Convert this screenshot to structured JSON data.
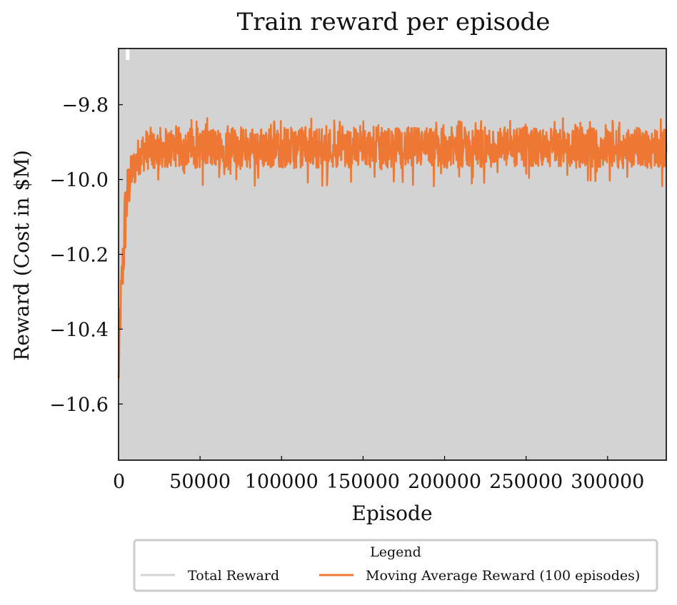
{
  "chart_data": {
    "type": "line",
    "title": "Train reward per episode",
    "xlabel": "Episode",
    "ylabel": "Reward (Cost in $M)",
    "xlim": [
      0,
      336000
    ],
    "ylim": [
      -10.75,
      -9.65
    ],
    "x_ticks": [
      0,
      50000,
      100000,
      150000,
      200000,
      250000,
      300000
    ],
    "x_tick_labels": [
      "0",
      "50000",
      "100000",
      "150000",
      "200000",
      "250000",
      "300000"
    ],
    "y_ticks": [
      -9.8,
      -10.0,
      -10.2,
      -10.4,
      -10.6
    ],
    "y_tick_labels": [
      "−9.8",
      "−10.0",
      "−10.2",
      "−10.4",
      "−10.6"
    ],
    "grid": false,
    "legend": {
      "title": "Legend",
      "placement": "below",
      "entries": [
        "Total Reward",
        "Moving Average Reward (100 episodes)"
      ]
    },
    "series": [
      {
        "name": "Total Reward",
        "color": "#d3d3d3",
        "description_range": [
          -10.75,
          -9.65
        ],
        "x": [
          0,
          336000
        ],
        "y_min": [
          -10.75,
          -10.75
        ],
        "y_max": [
          -9.65,
          -9.65
        ]
      },
      {
        "name": "Moving Average Reward (100 episodes)",
        "color": "#ee7733",
        "x": [
          0,
          500,
          1000,
          2000,
          3000,
          4000,
          5000,
          6000,
          8000,
          10000,
          12000,
          15000,
          20000,
          30000,
          40000,
          60000,
          80000,
          100000,
          130000,
          160000,
          200000,
          240000,
          280000,
          310000,
          336000
        ],
        "y": [
          -10.56,
          -10.45,
          -10.4,
          -10.32,
          -10.2,
          -10.1,
          -10.05,
          -10.0,
          -9.97,
          -9.95,
          -9.93,
          -9.92,
          -9.91,
          -9.91,
          -9.91,
          -9.91,
          -9.91,
          -9.91,
          -9.91,
          -9.91,
          -9.91,
          -9.91,
          -9.91,
          -9.91,
          -9.91
        ],
        "band_low": [
          -10.57,
          -10.55,
          -10.45,
          -10.35,
          -10.3,
          -10.22,
          -10.15,
          -10.1,
          -10.03,
          -10.02,
          -9.99,
          -9.98,
          -9.97,
          -9.97,
          -9.97,
          -9.97,
          -9.97,
          -9.97,
          -9.97,
          -9.97,
          -9.97,
          -9.97,
          -9.97,
          -9.97,
          -9.97
        ],
        "band_high": [
          -10.5,
          -10.4,
          -10.3,
          -10.2,
          -10.1,
          -10.0,
          -9.97,
          -9.95,
          -9.93,
          -9.91,
          -9.89,
          -9.87,
          -9.86,
          -9.86,
          -9.86,
          -9.86,
          -9.86,
          -9.86,
          -9.86,
          -9.86,
          -9.86,
          -9.86,
          -9.86,
          -9.86,
          -9.86
        ]
      }
    ]
  }
}
